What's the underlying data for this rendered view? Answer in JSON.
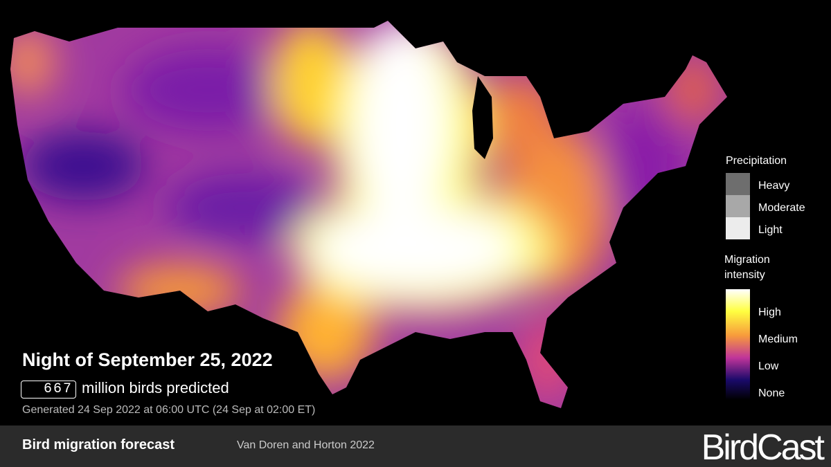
{
  "header": {
    "title": "Night of September 25, 2022",
    "count": "667",
    "count_label": "million birds predicted",
    "generated": "Generated 24 Sep 2022 at 06:00 UTC (24 Sep at 02:00 ET)"
  },
  "legend": {
    "precipitation": {
      "title": "Precipitation",
      "levels": [
        "Heavy",
        "Moderate",
        "Light"
      ]
    },
    "migration": {
      "title": "Migration intensity",
      "levels": [
        "High",
        "Medium",
        "Low",
        "None"
      ]
    }
  },
  "footer": {
    "title": "Bird migration forecast",
    "credit": "Van Doren and Horton 2022",
    "logo": "BirdCast"
  }
}
